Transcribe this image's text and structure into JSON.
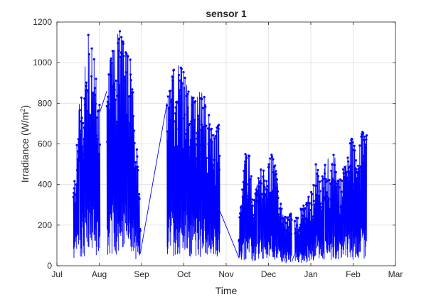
{
  "chart_data": {
    "type": "line",
    "title": "sensor 1",
    "xlabel": "Time",
    "ylabel": "Irradiance (W/m",
    "ylabel_sup": "2",
    "ylabel_close": ")",
    "x_tick_labels": [
      "Jul",
      "Aug",
      "Sep",
      "Oct",
      "Nov",
      "Dec",
      "Jan",
      "Feb",
      "Mar"
    ],
    "y_tick_labels": [
      "0",
      "200",
      "400",
      "600",
      "800",
      "1000",
      "1200"
    ],
    "ylim": [
      0,
      1200
    ],
    "xlim_months": [
      0,
      8
    ],
    "grid": true,
    "series": [
      {
        "color": "#0000ff",
        "marker": "dot",
        "segments": [
          {
            "from": 0.39,
            "to": 1.02,
            "envelope": [
              [
                0.39,
                400
              ],
              [
                0.45,
                530
              ],
              [
                0.55,
                860
              ],
              [
                0.62,
                870
              ],
              [
                0.7,
                1060
              ],
              [
                0.76,
                1165
              ],
              [
                0.8,
                1100
              ],
              [
                0.85,
                1040
              ],
              [
                0.9,
                1000
              ],
              [
                0.96,
                900
              ],
              [
                1.02,
                760
              ]
            ]
          },
          {
            "from": 1.18,
            "to": 1.97,
            "envelope": [
              [
                1.18,
                860
              ],
              [
                1.25,
                1005
              ],
              [
                1.32,
                1060
              ],
              [
                1.4,
                1065
              ],
              [
                1.45,
                1160
              ],
              [
                1.52,
                1150
              ],
              [
                1.6,
                1060
              ],
              [
                1.68,
                1030
              ],
              [
                1.75,
                1010
              ],
              [
                1.82,
                780
              ],
              [
                1.9,
                540
              ],
              [
                1.97,
                260
              ]
            ]
          },
          {
            "from": 2.6,
            "to": 3.85,
            "envelope": [
              [
                2.6,
                790
              ],
              [
                2.67,
                900
              ],
              [
                2.75,
                960
              ],
              [
                2.82,
                985
              ],
              [
                2.9,
                985
              ],
              [
                3.0,
                950
              ],
              [
                3.1,
                860
              ],
              [
                3.2,
                830
              ],
              [
                3.3,
                820
              ],
              [
                3.38,
                860
              ],
              [
                3.45,
                845
              ],
              [
                3.55,
                800
              ],
              [
                3.62,
                700
              ],
              [
                3.7,
                640
              ],
              [
                3.78,
                680
              ],
              [
                3.85,
                700
              ]
            ]
          },
          {
            "from": 4.3,
            "to": 5.55,
            "envelope": [
              [
                4.3,
                200
              ],
              [
                4.38,
                370
              ],
              [
                4.45,
                550
              ],
              [
                4.55,
                540
              ],
              [
                4.65,
                310
              ],
              [
                4.75,
                420
              ],
              [
                4.85,
                500
              ],
              [
                4.95,
                410
              ],
              [
                5.05,
                560
              ],
              [
                5.15,
                500
              ],
              [
                5.25,
                350
              ],
              [
                5.35,
                240
              ],
              [
                5.45,
                240
              ],
              [
                5.55,
                260
              ]
            ]
          },
          {
            "from": 5.62,
            "to": 7.32,
            "envelope": [
              [
                5.62,
                220
              ],
              [
                5.75,
                280
              ],
              [
                5.85,
                300
              ],
              [
                5.95,
                340
              ],
              [
                6.05,
                380
              ],
              [
                6.12,
                590
              ],
              [
                6.2,
                470
              ],
              [
                6.3,
                430
              ],
              [
                6.38,
                580
              ],
              [
                6.45,
                440
              ],
              [
                6.55,
                560
              ],
              [
                6.65,
                420
              ],
              [
                6.75,
                470
              ],
              [
                6.85,
                500
              ],
              [
                6.95,
                630
              ],
              [
                7.05,
                600
              ],
              [
                7.12,
                590
              ],
              [
                7.22,
                660
              ],
              [
                7.32,
                650
              ]
            ]
          }
        ],
        "connectors": [
          [
            [
              1.02,
              760
            ],
            [
              1.18,
              860
            ]
          ],
          [
            [
              1.97,
              60
            ],
            [
              2.6,
              800
            ]
          ],
          [
            [
              3.85,
              270
            ],
            [
              4.3,
              40
            ]
          ],
          [
            [
              5.55,
              20
            ],
            [
              5.62,
              60
            ]
          ]
        ]
      }
    ]
  }
}
